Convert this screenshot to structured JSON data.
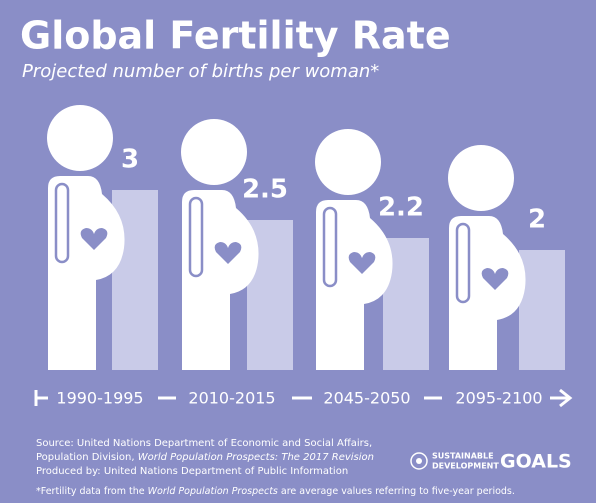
{
  "chart_data": {
    "type": "bar",
    "title": "Global Fertility Rate",
    "subtitle": "Projected number of births per woman*",
    "categories": [
      "1990-1995",
      "2010-2015",
      "2045-2050",
      "2095-2100"
    ],
    "values": [
      3,
      2.5,
      2.2,
      2
    ],
    "color": "#c9cbe8",
    "source": [
      [
        "Source: United Nations Department of Economic and Social Affairs,"
      ],
      [
        "Population Division, ",
        "World Population Prospects: The 2017 Revision"
      ],
      [
        "Produced by: United Nations Department of Public Information"
      ]
    ],
    "footnote": [
      "*Fertility data from the ",
      "World Population Prospects",
      " are average values referring to five-year periods."
    ],
    "logo": [
      "SUSTAINABLE",
      "DEVELOPMENT",
      "GOALS"
    ]
  }
}
